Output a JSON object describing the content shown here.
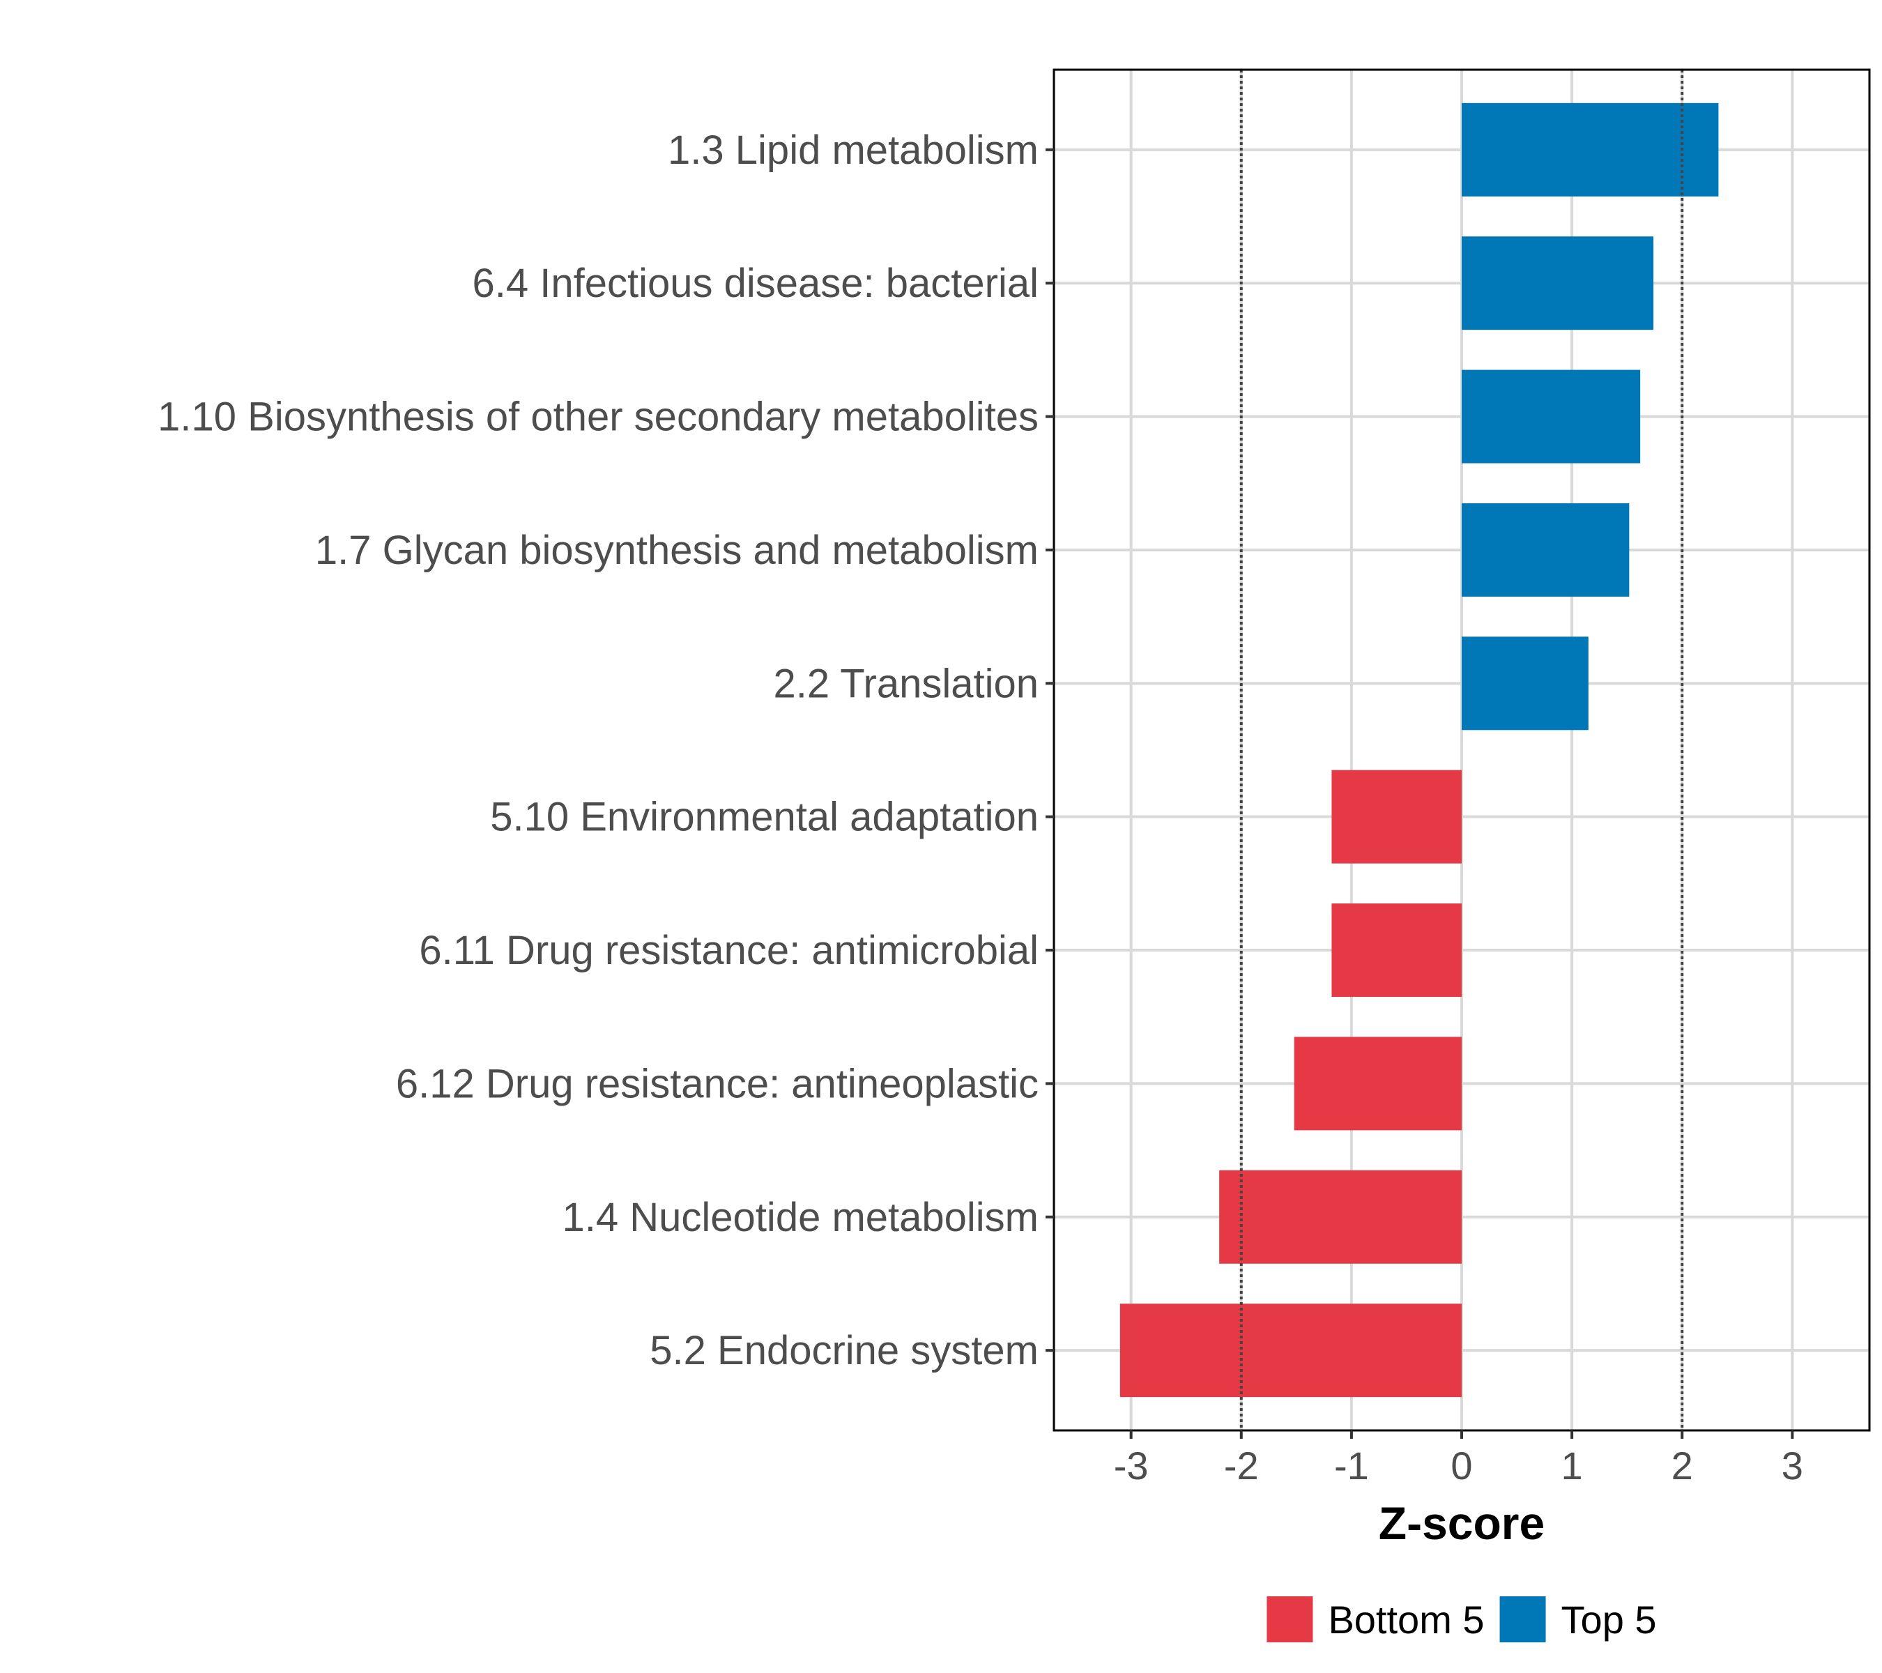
{
  "chart_data": {
    "type": "bar",
    "orientation": "horizontal",
    "title": "",
    "xlabel": "Z-score",
    "ylabel": "",
    "xlim": [
      -3.7,
      3.7
    ],
    "xticks": [
      -3,
      -2,
      -1,
      0,
      1,
      2,
      3
    ],
    "tick_labels": [
      "-3",
      "-2",
      "-1",
      "0",
      "1",
      "2",
      "3"
    ],
    "reference_lines": [
      -2,
      2
    ],
    "grid": true,
    "categories": [
      "1.3 Lipid metabolism",
      "6.4 Infectious disease: bacterial",
      "1.10 Biosynthesis of other secondary metabolites",
      "1.7 Glycan biosynthesis and metabolism",
      "2.2 Translation",
      "5.10 Environmental adaptation",
      "6.11 Drug resistance: antimicrobial",
      "6.12 Drug resistance: antineoplastic",
      "1.4 Nucleotide metabolism",
      "5.2 Endocrine system"
    ],
    "values": [
      2.33,
      1.74,
      1.62,
      1.52,
      1.15,
      -1.18,
      -1.18,
      -1.52,
      -2.2,
      -3.1
    ],
    "groups": [
      "Top 5",
      "Top 5",
      "Top 5",
      "Top 5",
      "Top 5",
      "Bottom 5",
      "Bottom 5",
      "Bottom 5",
      "Bottom 5",
      "Bottom 5"
    ],
    "legend": [
      {
        "name": "Bottom 5",
        "color": "#e63946"
      },
      {
        "name": "Top 5",
        "color": "#0077b6"
      }
    ],
    "legend_position": "bottom"
  }
}
